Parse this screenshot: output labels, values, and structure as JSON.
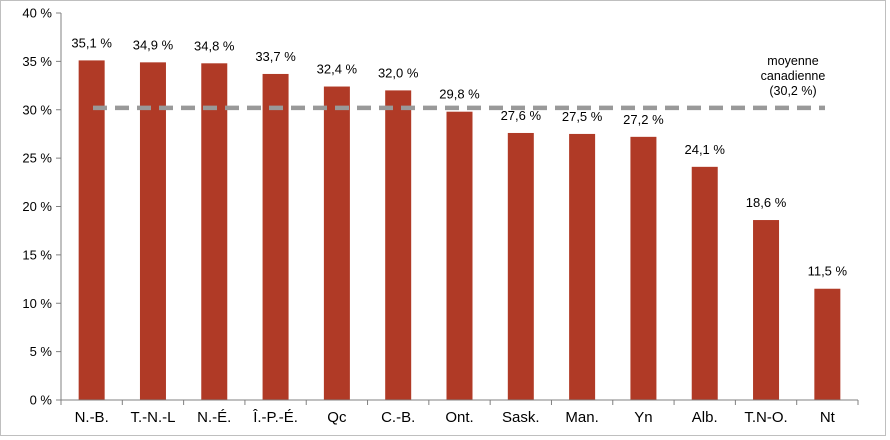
{
  "chart_data": {
    "type": "bar",
    "title": "",
    "xlabel": "",
    "ylabel": "",
    "categories": [
      "N.-B.",
      "T.-N.-L",
      "N.-É.",
      "Î.-P.-É.",
      "Qc",
      "C.-B.",
      "Ont.",
      "Sask.",
      "Man.",
      "Yn",
      "Alb.",
      "T.N-O.",
      "Nt"
    ],
    "values": [
      35.1,
      34.9,
      34.8,
      33.7,
      32.4,
      32.0,
      29.8,
      27.6,
      27.5,
      27.2,
      24.1,
      18.6,
      11.5
    ],
    "value_labels": [
      "35,1 %",
      "34,9 %",
      "34,8 %",
      "33,7 %",
      "32,4 %",
      "32,0 %",
      "29,8 %",
      "27,6 %",
      "27,5 %",
      "27,2 %",
      "24,1 %",
      "18,6 %",
      "11,5 %"
    ],
    "ylim": [
      0,
      40
    ],
    "yticks": [
      0,
      5,
      10,
      15,
      20,
      25,
      30,
      35,
      40
    ],
    "ytick_labels": [
      "0 %",
      "5 %",
      "10 %",
      "15 %",
      "20 %",
      "25 %",
      "30 %",
      "35 %",
      "40 %"
    ],
    "bar_color": "#b03a26",
    "grid": false,
    "legend": "none",
    "reference_line": {
      "value": 30.2,
      "style": "dashed",
      "color": "#999999",
      "label_lines": [
        "moyenne",
        "canadienne",
        "(30,2 %)"
      ]
    }
  }
}
